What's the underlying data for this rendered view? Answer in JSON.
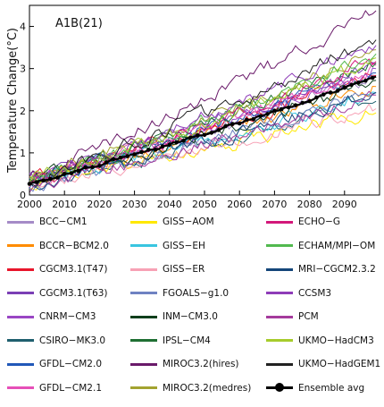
{
  "chart_data": {
    "type": "line",
    "title": "",
    "panel_label": "A1B(21)",
    "xlabel": "",
    "ylabel": "Temperature Change(°C)",
    "xlim": [
      2000,
      2100
    ],
    "ylim": [
      0,
      4.5
    ],
    "x_ticks": [
      2000,
      2010,
      2020,
      2030,
      2040,
      2050,
      2060,
      2070,
      2080,
      2090
    ],
    "y_ticks": [
      0,
      1,
      2,
      3,
      4
    ],
    "grid": false,
    "legend_position": "below",
    "series": [
      {
        "name": "BCC−CM1",
        "color": "#a58bc7",
        "start": 0.28,
        "end": 2.85
      },
      {
        "name": "BCCR−BCM2.0",
        "color": "#ff8c00",
        "start": 0.3,
        "end": 2.6
      },
      {
        "name": "CGCM3.1(T47)",
        "color": "#e8152b",
        "start": 0.35,
        "end": 2.9
      },
      {
        "name": "CGCM3.1(T63)",
        "color": "#7b3fb5",
        "start": 0.4,
        "end": 3.1
      },
      {
        "name": "CNRM−CM3",
        "color": "#9a46c4",
        "start": 0.3,
        "end": 3.0
      },
      {
        "name": "CSIRO−MK3.0",
        "color": "#1f5f6e",
        "start": 0.25,
        "end": 2.3
      },
      {
        "name": "GFDL−CM2.0",
        "color": "#2158b8",
        "start": 0.3,
        "end": 2.9
      },
      {
        "name": "GFDL−CM2.1",
        "color": "#e64fb8",
        "start": 0.3,
        "end": 3.0
      },
      {
        "name": "GISS−AOM",
        "color": "#ffe800",
        "start": 0.25,
        "end": 2.0
      },
      {
        "name": "GISS−EH",
        "color": "#39c5e0",
        "start": 0.3,
        "end": 2.4
      },
      {
        "name": "GISS−ER",
        "color": "#f7a1b5",
        "start": 0.25,
        "end": 2.1
      },
      {
        "name": "FGOALS−g1.0",
        "color": "#6f82c2",
        "start": 0.2,
        "end": 2.5
      },
      {
        "name": "INM−CM3.0",
        "color": "#0f3f1c",
        "start": 0.35,
        "end": 2.7
      },
      {
        "name": "IPSL−CM4",
        "color": "#1f6f33",
        "start": 0.3,
        "end": 3.2
      },
      {
        "name": "MIROC3.2(hires)",
        "color": "#6a1a6a",
        "start": 0.4,
        "end": 4.4
      },
      {
        "name": "MIROC3.2(medres)",
        "color": "#a3a330",
        "start": 0.4,
        "end": 3.4
      },
      {
        "name": "ECHO−G",
        "color": "#d3187a",
        "start": 0.25,
        "end": 3.2
      },
      {
        "name": "ECHAM/MPI−OM",
        "color": "#52b94f",
        "start": 0.3,
        "end": 3.4
      },
      {
        "name": "MRI−CGCM2.3.2",
        "color": "#14467a",
        "start": 0.25,
        "end": 2.4
      },
      {
        "name": "CCSM3",
        "color": "#8e3cb8",
        "start": 0.4,
        "end": 3.6
      },
      {
        "name": "PCM",
        "color": "#a53b9c",
        "start": 0.2,
        "end": 2.3
      },
      {
        "name": "UKMO−HadCM3",
        "color": "#a6cc2c",
        "start": 0.4,
        "end": 3.2
      },
      {
        "name": "UKMO−HadGEM1",
        "color": "#222222",
        "start": 0.35,
        "end": 3.7
      },
      {
        "name": "Ensemble avg",
        "color": "#000000",
        "start": 0.28,
        "end": 2.8,
        "ensemble": true
      }
    ]
  }
}
